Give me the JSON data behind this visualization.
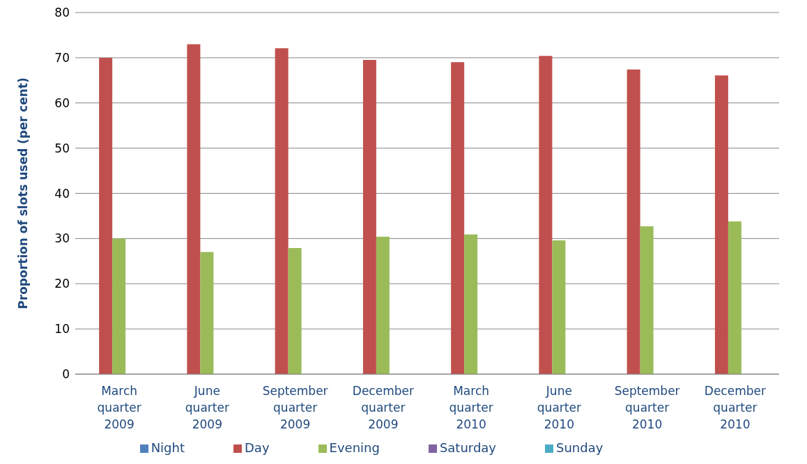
{
  "chart_data": {
    "type": "bar",
    "ylabel": "Proportion of slots used (per cent)",
    "categories": [
      "March quarter 2009",
      "June quarter 2009",
      "September quarter 2009",
      "December quarter 2009",
      "March quarter 2010",
      "June quarter 2010",
      "September quarter 2010",
      "December quarter 2010"
    ],
    "series": [
      {
        "name": "Night",
        "color": "#4f81bd",
        "values": [
          0,
          0,
          0,
          0,
          0,
          0,
          0,
          0
        ]
      },
      {
        "name": "Day",
        "color": "#c0504d",
        "values": [
          70,
          73,
          72.1,
          69.5,
          69,
          70.4,
          67.4,
          66.1
        ]
      },
      {
        "name": "Evening",
        "color": "#9bbb59",
        "values": [
          30,
          27,
          27.9,
          30.4,
          30.9,
          29.6,
          32.7,
          33.8
        ]
      },
      {
        "name": "Saturday",
        "color": "#8064a2",
        "values": [
          0,
          0,
          0,
          0,
          0,
          0,
          0,
          0
        ]
      },
      {
        "name": "Sunday",
        "color": "#4bacc6",
        "values": [
          0,
          0,
          0,
          0,
          0,
          0,
          0,
          0
        ]
      }
    ],
    "ylim": [
      0,
      80
    ],
    "yticks": [
      0,
      10,
      20,
      30,
      40,
      50,
      60,
      70,
      80
    ],
    "grid": "y",
    "legend": "bottom"
  }
}
